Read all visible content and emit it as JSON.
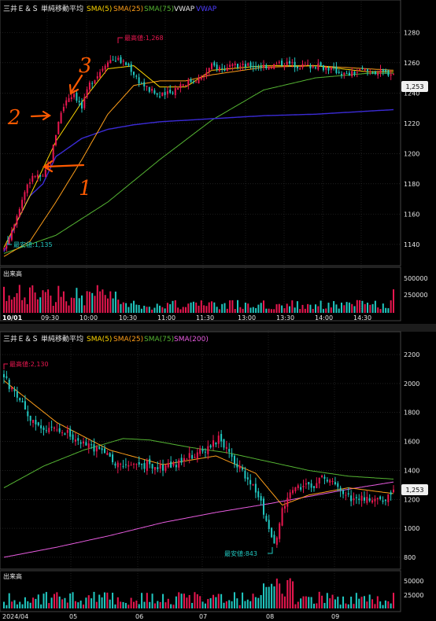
{
  "colors": {
    "up": "#e8174f",
    "down": "#21c7c0",
    "sma5": "#ffd700",
    "sma25": "#ff9f1a",
    "sma75": "#55b533",
    "vwap": "#3b2bd6",
    "sma200": "#e85ce0",
    "annot": "#ff5a00",
    "price_box": "#f0f0f0",
    "grid": "#333333",
    "bg": "#000000"
  },
  "intraday": {
    "title": "三井Ｅ＆Ｓ",
    "legend_title": "単純移動平均",
    "legend": [
      {
        "label": "SMA(5)",
        "color_key": "sma5"
      },
      {
        "label": "SMA(25)",
        "color_key": "sma25"
      },
      {
        "label": "SMA(75)",
        "color_key": "sma75"
      },
      {
        "label": "VWAP",
        "color_key": "plain"
      },
      {
        "label": "VWAP",
        "color_key": "vwap"
      }
    ],
    "high_label": "最高値:1,268",
    "low_label": "最安値:1,135",
    "last_price": "1,253",
    "y_ticks": [
      "1280",
      "1260",
      "1240",
      "1220",
      "1200",
      "1180",
      "1160",
      "1140"
    ],
    "x_ticks": [
      "10/01",
      "09:30",
      "10:00",
      "10:30",
      "11:00",
      "11:30",
      "13:00",
      "13:30",
      "14:00",
      "14:30"
    ],
    "volume_title": "出来高",
    "volume_ticks": [
      "500000",
      "250000"
    ],
    "annotations": [
      "1",
      "2",
      "3"
    ]
  },
  "daily": {
    "title": "三井Ｅ＆Ｓ",
    "legend_title": "単純移動平均",
    "legend": [
      {
        "label": "SMA(5)",
        "color_key": "sma5"
      },
      {
        "label": "SMA(25)",
        "color_key": "sma25"
      },
      {
        "label": "SMA(75)",
        "color_key": "sma75"
      },
      {
        "label": "SMA(200)",
        "color_key": "sma200"
      }
    ],
    "high_label": "最高値:2,130",
    "low_label": "最安値:843",
    "last_price": "1,253",
    "y_ticks": [
      "2200",
      "2000",
      "1800",
      "1600",
      "1400",
      "1200",
      "1000",
      "800"
    ],
    "x_ticks": [
      "2024/04",
      "05",
      "06",
      "07",
      "08",
      "09"
    ],
    "volume_title": "出来高",
    "volume_ticks": [
      "50000",
      "25000"
    ]
  },
  "chart_data": [
    {
      "type": "candlestick",
      "title": "三井Ｅ＆Ｓ",
      "period": "intraday 10/01",
      "ylim": [
        1128,
        1290
      ],
      "y_ticks": [
        1140,
        1160,
        1180,
        1200,
        1220,
        1240,
        1260,
        1280
      ],
      "x_ticks": [
        "09:30",
        "10:00",
        "10:30",
        "11:00",
        "11:30",
        "13:00",
        "13:30",
        "14:00",
        "14:30"
      ],
      "high": 1268,
      "low": 1135,
      "last": 1253,
      "close_path": [
        [
          0,
          1136
        ],
        [
          3,
          1150
        ],
        [
          6,
          1165
        ],
        [
          9,
          1180
        ],
        [
          12,
          1186
        ],
        [
          15,
          1184
        ],
        [
          18,
          1196
        ],
        [
          21,
          1222
        ],
        [
          24,
          1236
        ],
        [
          27,
          1240
        ],
        [
          30,
          1230
        ],
        [
          33,
          1246
        ],
        [
          36,
          1252
        ],
        [
          40,
          1262
        ],
        [
          44,
          1262
        ],
        [
          48,
          1258
        ],
        [
          52,
          1248
        ],
        [
          56,
          1242
        ],
        [
          60,
          1238
        ],
        [
          64,
          1240
        ],
        [
          68,
          1246
        ],
        [
          72,
          1248
        ],
        [
          76,
          1250
        ],
        [
          80,
          1258
        ],
        [
          85,
          1256
        ],
        [
          90,
          1258
        ],
        [
          96,
          1258
        ],
        [
          102,
          1258
        ],
        [
          108,
          1260
        ],
        [
          114,
          1258
        ],
        [
          120,
          1258
        ],
        [
          126,
          1256
        ],
        [
          132,
          1252
        ],
        [
          138,
          1255
        ],
        [
          144,
          1254
        ],
        [
          150,
          1253
        ]
      ],
      "sma5_path": [
        [
          0,
          1138
        ],
        [
          10,
          1172
        ],
        [
          20,
          1208
        ],
        [
          30,
          1234
        ],
        [
          40,
          1256
        ],
        [
          50,
          1258
        ],
        [
          60,
          1244
        ],
        [
          70,
          1244
        ],
        [
          80,
          1255
        ],
        [
          100,
          1258
        ],
        [
          120,
          1258
        ],
        [
          140,
          1254
        ],
        [
          150,
          1254
        ]
      ],
      "sma25_path": [
        [
          0,
          1132
        ],
        [
          10,
          1142
        ],
        [
          20,
          1168
        ],
        [
          30,
          1196
        ],
        [
          40,
          1226
        ],
        [
          50,
          1245
        ],
        [
          60,
          1248
        ],
        [
          70,
          1248
        ],
        [
          80,
          1252
        ],
        [
          100,
          1257
        ],
        [
          120,
          1258
        ],
        [
          140,
          1256
        ],
        [
          150,
          1255
        ]
      ],
      "sma75_path": [
        [
          0,
          1134
        ],
        [
          20,
          1146
        ],
        [
          40,
          1168
        ],
        [
          60,
          1196
        ],
        [
          80,
          1222
        ],
        [
          100,
          1242
        ],
        [
          120,
          1250
        ],
        [
          140,
          1253
        ],
        [
          150,
          1253
        ]
      ],
      "vwap_path": [
        [
          0,
          1135
        ],
        [
          5,
          1155
        ],
        [
          10,
          1172
        ],
        [
          15,
          1180
        ],
        [
          20,
          1198
        ],
        [
          30,
          1210
        ],
        [
          40,
          1216
        ],
        [
          50,
          1219
        ],
        [
          60,
          1221
        ],
        [
          80,
          1223
        ],
        [
          100,
          1225
        ],
        [
          120,
          1226
        ],
        [
          140,
          1228
        ],
        [
          150,
          1229
        ]
      ],
      "volume_ticks": [
        250000,
        500000
      ],
      "volume_max": 560000
    },
    {
      "type": "candlestick",
      "title": "三井Ｅ＆Ｓ",
      "period": "daily 2024/04 - 2024/09",
      "ylim": [
        740,
        2260
      ],
      "y_ticks": [
        800,
        1000,
        1200,
        1400,
        1600,
        1800,
        2000,
        2200
      ],
      "x_ticks": [
        "2024/04",
        "05",
        "06",
        "07",
        "08",
        "09"
      ],
      "high": 2130,
      "low": 843,
      "last": 1253,
      "close_path": [
        [
          0,
          2050
        ],
        [
          3,
          1950
        ],
        [
          6,
          1880
        ],
        [
          9,
          1780
        ],
        [
          12,
          1720
        ],
        [
          15,
          1660
        ],
        [
          18,
          1690
        ],
        [
          21,
          1640
        ],
        [
          24,
          1660
        ],
        [
          27,
          1620
        ],
        [
          30,
          1590
        ],
        [
          33,
          1560
        ],
        [
          36,
          1530
        ],
        [
          39,
          1500
        ],
        [
          42,
          1460
        ],
        [
          45,
          1440
        ],
        [
          48,
          1420
        ],
        [
          51,
          1430
        ],
        [
          54,
          1440
        ],
        [
          57,
          1410
        ],
        [
          60,
          1420
        ],
        [
          63,
          1440
        ],
        [
          66,
          1450
        ],
        [
          69,
          1480
        ],
        [
          72,
          1520
        ],
        [
          75,
          1530
        ],
        [
          78,
          1580
        ],
        [
          81,
          1620
        ],
        [
          84,
          1540
        ],
        [
          87,
          1460
        ],
        [
          90,
          1380
        ],
        [
          93,
          1320
        ],
        [
          96,
          1240
        ],
        [
          99,
          1050
        ],
        [
          102,
          880
        ],
        [
          105,
          1120
        ],
        [
          108,
          1230
        ],
        [
          111,
          1280
        ],
        [
          114,
          1290
        ],
        [
          117,
          1300
        ],
        [
          120,
          1360
        ],
        [
          123,
          1340
        ],
        [
          126,
          1280
        ],
        [
          129,
          1240
        ],
        [
          132,
          1200
        ],
        [
          135,
          1220
        ],
        [
          138,
          1200
        ],
        [
          141,
          1190
        ],
        [
          144,
          1200
        ],
        [
          147,
          1253
        ]
      ],
      "sma25_path": [
        [
          0,
          2020
        ],
        [
          20,
          1730
        ],
        [
          40,
          1540
        ],
        [
          60,
          1440
        ],
        [
          80,
          1500
        ],
        [
          95,
          1380
        ],
        [
          105,
          1160
        ],
        [
          115,
          1230
        ],
        [
          130,
          1280
        ],
        [
          147,
          1240
        ]
      ],
      "sma75_path": [
        [
          0,
          1280
        ],
        [
          15,
          1430
        ],
        [
          30,
          1540
        ],
        [
          45,
          1620
        ],
        [
          55,
          1610
        ],
        [
          70,
          1560
        ],
        [
          85,
          1520
        ],
        [
          100,
          1460
        ],
        [
          115,
          1400
        ],
        [
          130,
          1360
        ],
        [
          147,
          1340
        ]
      ],
      "sma200_path": [
        [
          0,
          800
        ],
        [
          20,
          870
        ],
        [
          40,
          950
        ],
        [
          60,
          1040
        ],
        [
          80,
          1110
        ],
        [
          100,
          1170
        ],
        [
          115,
          1220
        ],
        [
          130,
          1270
        ],
        [
          147,
          1320
        ]
      ],
      "volume_ticks": [
        25000,
        50000
      ],
      "volume_max": 62000
    }
  ]
}
